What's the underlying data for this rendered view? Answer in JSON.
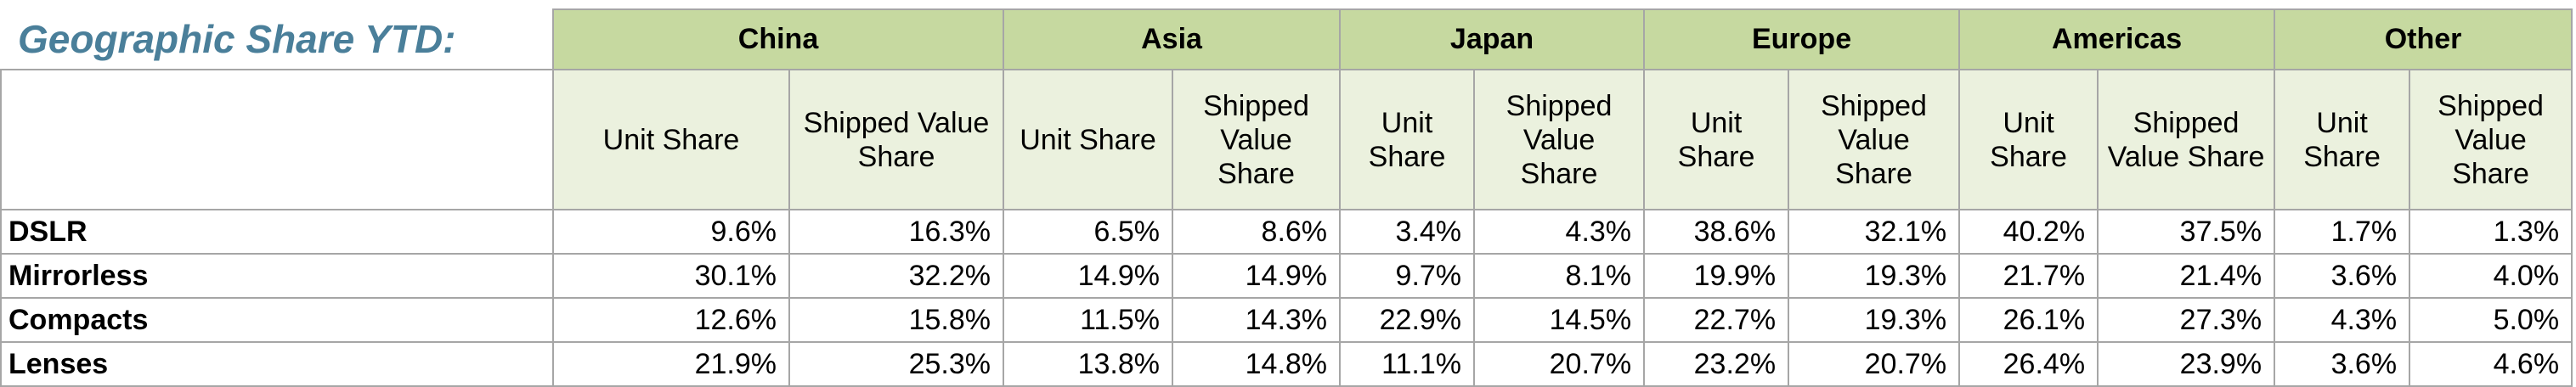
{
  "title": "Geographic Share YTD:",
  "regions": [
    {
      "name": "China",
      "columns": [
        "Unit Share",
        "Shipped Value Share"
      ]
    },
    {
      "name": "Asia",
      "columns": [
        "Unit Share",
        "Shipped Value Share"
      ]
    },
    {
      "name": "Japan",
      "columns": [
        "Unit Share",
        "Shipped Value Share"
      ]
    },
    {
      "name": "Europe",
      "columns": [
        "Unit Share",
        "Shipped Value Share"
      ]
    },
    {
      "name": "Americas",
      "columns": [
        "Unit Share",
        "Shipped Value Share"
      ]
    },
    {
      "name": "Other",
      "columns": [
        "Unit Share",
        "Shipped Value Share"
      ]
    }
  ],
  "rows": [
    {
      "label": "DSLR",
      "values": [
        "9.6%",
        "16.3%",
        "6.5%",
        "8.6%",
        "3.4%",
        "4.3%",
        "38.6%",
        "32.1%",
        "40.2%",
        "37.5%",
        "1.7%",
        "1.3%"
      ]
    },
    {
      "label": "Mirrorless",
      "values": [
        "30.1%",
        "32.2%",
        "14.9%",
        "14.9%",
        "9.7%",
        "8.1%",
        "19.9%",
        "19.3%",
        "21.7%",
        "21.4%",
        "3.6%",
        "4.0%"
      ]
    },
    {
      "label": "Compacts",
      "values": [
        "12.6%",
        "15.8%",
        "11.5%",
        "14.3%",
        "22.9%",
        "14.5%",
        "22.7%",
        "19.3%",
        "26.1%",
        "27.3%",
        "4.3%",
        "5.0%"
      ]
    },
    {
      "label": "Lenses",
      "values": [
        "21.9%",
        "25.3%",
        "13.8%",
        "14.8%",
        "11.1%",
        "20.7%",
        "23.2%",
        "20.7%",
        "26.4%",
        "23.9%",
        "3.6%",
        "4.6%"
      ]
    }
  ]
}
